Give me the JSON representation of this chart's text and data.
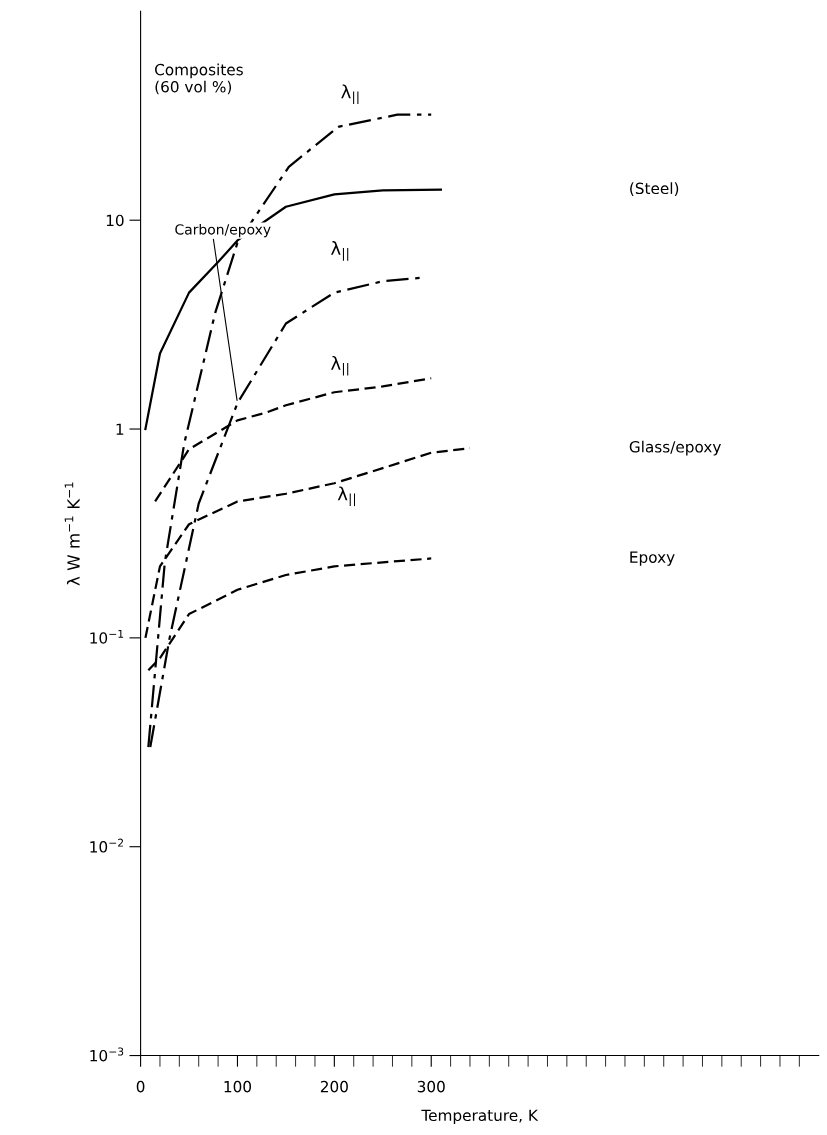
{
  "chart_data": {
    "type": "line",
    "xlabel": "Temperature, K",
    "ylabel": "λ W m$^{−1}$ K$^{−1}$",
    "xlim": [
      0,
      700
    ],
    "ylim": [
      0.001,
      100
    ],
    "log": "y",
    "grid": false,
    "legend": false,
    "marker": "none",
    "xticks": [
      0,
      {
        "value": 20,
        "label": null
      },
      {
        "value": 40,
        "label": null
      },
      {
        "value": 60,
        "label": null
      },
      {
        "value": 80,
        "label": null
      },
      100,
      {
        "value": 120,
        "label": null
      },
      {
        "value": 140,
        "label": null
      },
      {
        "value": 160,
        "label": null
      },
      {
        "value": 180,
        "label": null
      },
      200,
      {
        "value": 220,
        "label": null
      },
      {
        "value": 240,
        "label": null
      },
      {
        "value": 260,
        "label": null
      },
      {
        "value": 280,
        "label": null
      },
      300,
      {
        "value": 320,
        "label": null
      },
      {
        "value": 340,
        "label": null
      },
      {
        "value": 360,
        "label": null
      },
      {
        "value": 380,
        "label": null
      },
      {
        "value": 400,
        "label": null
      },
      {
        "value": 420,
        "label": null
      },
      {
        "value": 440,
        "label": null
      },
      {
        "value": 460,
        "label": null
      },
      {
        "value": 480,
        "label": null
      },
      {
        "value": 500,
        "label": null
      },
      {
        "value": 520,
        "label": null
      },
      {
        "value": 540,
        "label": null
      },
      {
        "value": 560,
        "label": null
      },
      {
        "value": 580,
        "label": null
      },
      {
        "value": 600,
        "label": null
      },
      {
        "value": 620,
        "label": null
      },
      {
        "value": 640,
        "label": null
      },
      {
        "value": 660,
        "label": null
      },
      {
        "value": 680,
        "label": null
      }
    ],
    "yticks": [
      {
        "value": 0.001,
        "label": "10$^{−3}$"
      },
      {
        "value": 0.01,
        "label": "10$^{−2}$"
      },
      {
        "value": 0.1,
        "label": "10$^{−1}$"
      },
      1,
      10
    ],
    "series": [
      {
        "color": "#000000",
        "line_style": "dashdot",
        "x": [
          8,
          25,
          45,
          77,
          100,
          153,
          204,
          265,
          300
        ],
        "values": [
          0.03,
          0.23,
          0.85,
          3.6,
          7.8,
          18,
          28,
          32,
          32
        ]
      },
      {
        "name": "(Steel)",
        "color": "#000000",
        "line_style": "solid",
        "x": [
          5,
          20,
          50,
          80,
          100,
          150,
          200,
          250,
          310
        ],
        "values": [
          1.0,
          2.3,
          4.5,
          6.3,
          8,
          11.6,
          13.3,
          13.9,
          14
        ]
      },
      {
        "color": "#000000",
        "line_style": "dashdot",
        "x": [
          10,
          30,
          60,
          100,
          150,
          200,
          250,
          290
        ],
        "values": [
          0.03,
          0.1,
          0.44,
          1.33,
          3.2,
          4.5,
          5.1,
          5.3
        ]
      },
      {
        "color": "#000000",
        "line_style": "dashed",
        "x": [
          15,
          50,
          100,
          130,
          150,
          200,
          250,
          300
        ],
        "values": [
          0.45,
          0.8,
          1.1,
          1.2,
          1.3,
          1.5,
          1.6,
          1.75
        ]
      },
      {
        "name": "Glass/epoxy",
        "color": "#000000",
        "line_style": "dashed",
        "x": [
          5,
          20,
          50,
          100,
          150,
          200,
          250,
          300,
          340
        ],
        "values": [
          0.1,
          0.22,
          0.35,
          0.45,
          0.49,
          0.55,
          0.65,
          0.77,
          0.81
        ]
      },
      {
        "name": "Epoxy",
        "color": "#000000",
        "line_style": "dashed",
        "x": [
          8,
          20,
          50,
          100,
          150,
          200,
          250,
          300
        ],
        "values": [
          0.07,
          0.08,
          0.13,
          0.17,
          0.2,
          0.22,
          0.23,
          0.24
        ]
      }
    ],
    "annotations": [
      "Composites\n(60 vol %)",
      "λ$_{||}$",
      "λ$_{||}$",
      "λ$_{||}$",
      "λ$_{||}$",
      {
        "text": "Carbon/epoxy",
        "x": 100,
        "y": 1.33
      }
    ]
  }
}
